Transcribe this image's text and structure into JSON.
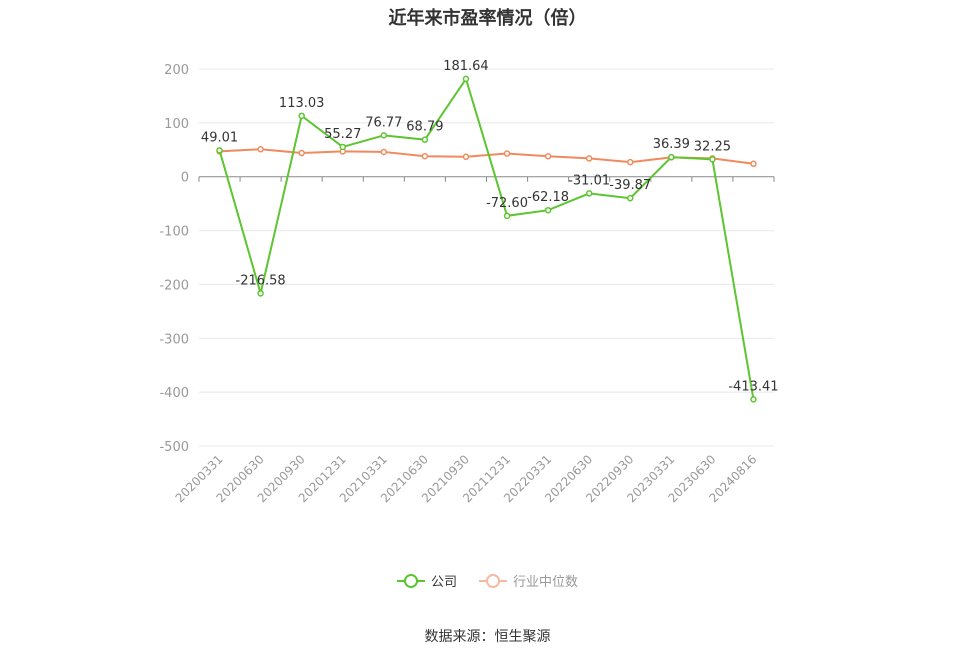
{
  "title": "近年来市盈率情况（倍）",
  "source": "数据来源：恒生聚源",
  "chart_data": {
    "type": "line",
    "categories": [
      "20200331",
      "20200630",
      "20200930",
      "20201231",
      "20210331",
      "20210630",
      "20210930",
      "20211231",
      "20220331",
      "20220630",
      "20220930",
      "20230331",
      "20230630",
      "20240816"
    ],
    "ylim": [
      -500,
      200
    ],
    "yticks": [
      "200",
      "100",
      "0",
      "-100",
      "-200",
      "-300",
      "-400",
      "-500"
    ],
    "grid": true,
    "legend_position": "bottom",
    "series": [
      {
        "name": "公司",
        "color": "#5cc52f",
        "values": [
          49.01,
          -216.58,
          113.03,
          55.27,
          76.77,
          68.79,
          181.64,
          -72.6,
          -62.18,
          -31.01,
          -39.87,
          36.39,
          32.25,
          -413.41
        ],
        "labels": [
          "49.01",
          "-216.58",
          "113.03",
          "55.27",
          "76.77",
          "68.79",
          "181.64",
          "-72.60",
          "-62.18",
          "-31.01",
          "-39.87",
          "36.39",
          "32.25",
          "-413.41"
        ]
      },
      {
        "name": "行业中位数",
        "color": "#f08a5d",
        "values": [
          47,
          51,
          44,
          47,
          46,
          38,
          37,
          43,
          38,
          34,
          27,
          36,
          34,
          24
        ]
      }
    ]
  }
}
